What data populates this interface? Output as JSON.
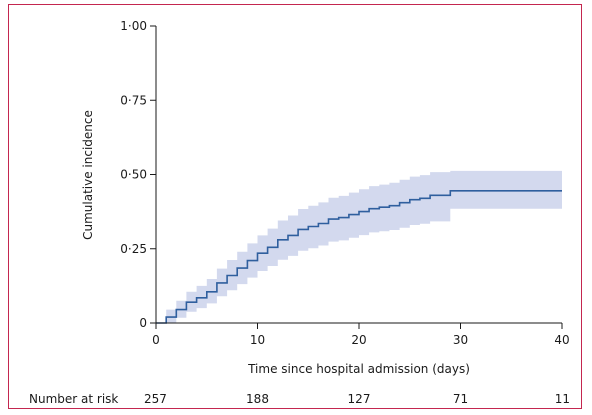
{
  "chart_data": {
    "type": "line",
    "xlabel": "Time since hospital admission (days)",
    "ylabel": "Cumulative incidence",
    "xlim": [
      0,
      40
    ],
    "ylim": [
      0,
      1
    ],
    "x_ticks": [
      0,
      10,
      20,
      30,
      40
    ],
    "x_tick_labels": [
      "0",
      "10",
      "20",
      "30",
      "40"
    ],
    "y_ticks": [
      0,
      0.25,
      0.5,
      0.75,
      1.0
    ],
    "y_tick_labels": [
      "0",
      "0·25",
      "0·50",
      "0·75",
      "1·00"
    ],
    "grid": false,
    "colors": {
      "line": "#2f5f9e",
      "ci_band": "#d3d9ee",
      "frame": "#c4264f",
      "axis": "#1a1a1a"
    },
    "series": [
      {
        "x": [
          0,
          1,
          2,
          3,
          4,
          5,
          6,
          7,
          8,
          9,
          10,
          11,
          12,
          13,
          14,
          15,
          16,
          17,
          18,
          19,
          20,
          21,
          22,
          23,
          24,
          25,
          26,
          27,
          29,
          40
        ],
        "y": [
          0,
          0.02,
          0.045,
          0.07,
          0.085,
          0.105,
          0.135,
          0.16,
          0.185,
          0.21,
          0.235,
          0.255,
          0.28,
          0.295,
          0.315,
          0.325,
          0.335,
          0.35,
          0.355,
          0.365,
          0.375,
          0.385,
          0.39,
          0.395,
          0.405,
          0.415,
          0.42,
          0.43,
          0.445,
          0.445
        ],
        "ci_lower": [
          0,
          0,
          0.018,
          0.038,
          0.05,
          0.066,
          0.09,
          0.11,
          0.131,
          0.153,
          0.175,
          0.192,
          0.213,
          0.226,
          0.243,
          0.252,
          0.261,
          0.274,
          0.278,
          0.287,
          0.296,
          0.305,
          0.309,
          0.313,
          0.321,
          0.33,
          0.334,
          0.342,
          0.385,
          0.385
        ],
        "ci_upper": [
          0,
          0.045,
          0.075,
          0.105,
          0.125,
          0.148,
          0.183,
          0.212,
          0.24,
          0.268,
          0.295,
          0.318,
          0.345,
          0.362,
          0.384,
          0.395,
          0.406,
          0.422,
          0.428,
          0.439,
          0.45,
          0.461,
          0.466,
          0.472,
          0.482,
          0.493,
          0.498,
          0.508,
          0.512,
          0.512
        ]
      }
    ],
    "risk_table": {
      "label": "Number at risk",
      "x": [
        0,
        10,
        20,
        30,
        40
      ],
      "counts": [
        "257",
        "188",
        "127",
        "71",
        "11"
      ]
    }
  }
}
